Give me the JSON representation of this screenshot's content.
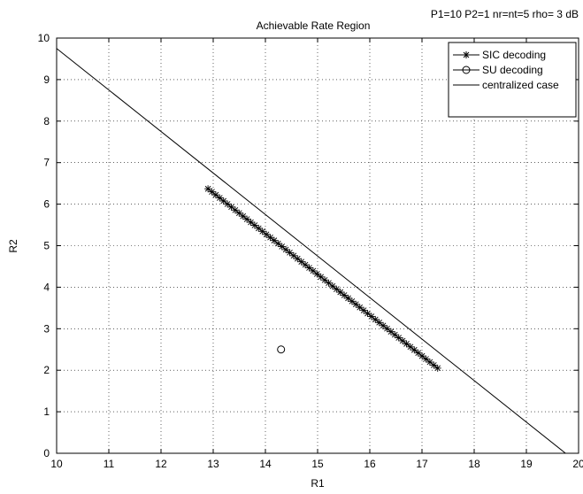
{
  "chart_data": {
    "type": "line",
    "title": "Achievable Rate Region",
    "subtitle": "P1=10 P2=1 nr=nt=5 rho= 3 dB",
    "xlabel": "R1",
    "ylabel": "R2",
    "xlim": [
      10,
      20
    ],
    "ylim": [
      0,
      10
    ],
    "xticks": [
      "10",
      "11",
      "12",
      "13",
      "14",
      "15",
      "16",
      "17",
      "18",
      "19",
      "20"
    ],
    "yticks": [
      "0",
      "1",
      "2",
      "3",
      "4",
      "5",
      "6",
      "7",
      "8",
      "9",
      "10"
    ],
    "grid": true,
    "legend_position": "top-right",
    "series": [
      {
        "name": "SIC decoding",
        "marker": "star",
        "line": "none",
        "x_start": 12.9,
        "y_start": 6.37,
        "x_end": 17.3,
        "y_end": 2.05,
        "points": 60
      },
      {
        "name": "SU decoding",
        "marker": "circle",
        "line": "none",
        "x": [
          14.3
        ],
        "y": [
          2.5
        ]
      },
      {
        "name": "centralized case",
        "marker": "none",
        "line": "solid",
        "x": [
          10,
          19.75
        ],
        "y": [
          9.75,
          0
        ]
      }
    ]
  }
}
